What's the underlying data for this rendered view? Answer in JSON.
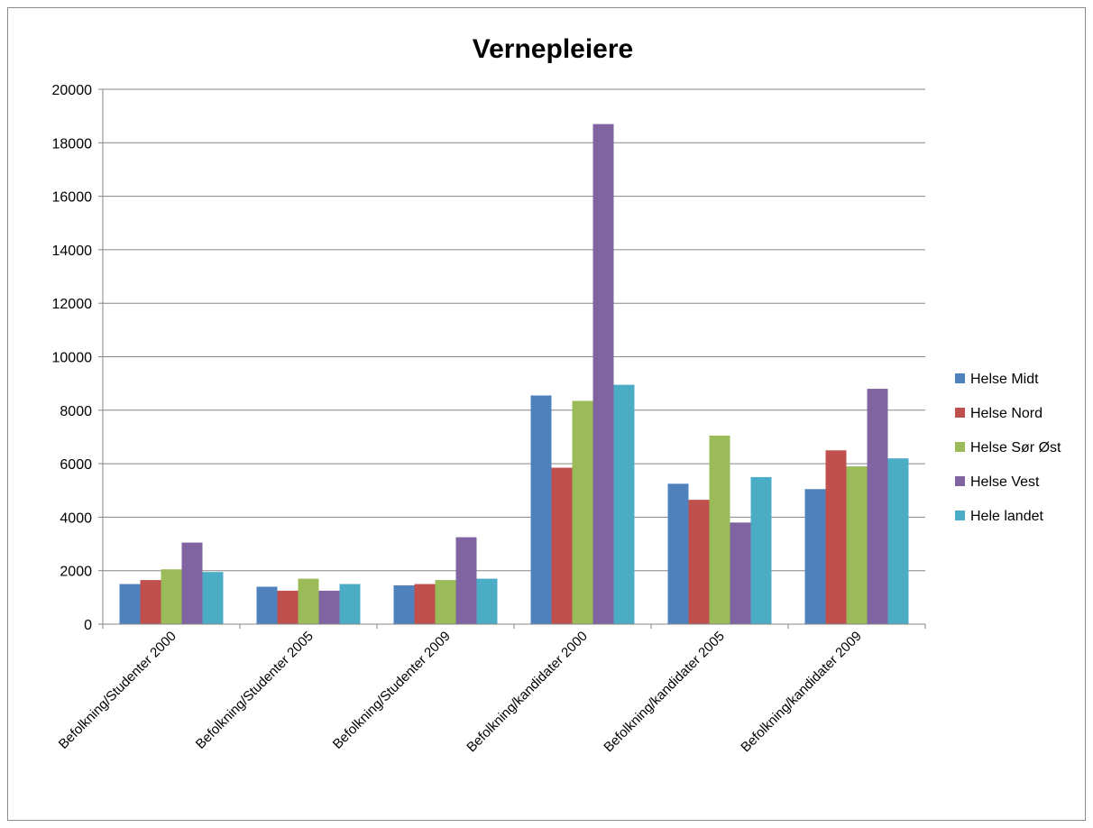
{
  "chart_data": {
    "type": "bar",
    "title": "Vernepleiere",
    "xlabel": "",
    "ylabel": "",
    "ylim": [
      0,
      20000
    ],
    "yticks": [
      0,
      2000,
      4000,
      6000,
      8000,
      10000,
      12000,
      14000,
      16000,
      18000,
      20000
    ],
    "grid": true,
    "legend_position": "right",
    "categories": [
      "Befolkning/Studenter 2000",
      "Befolkning/Studenter 2005",
      "Befolkning/Studenter 2009",
      "Befolkning/kandidater 2000",
      "Befolkning/kandidater 2005",
      "Befolkning/kandidater 2009"
    ],
    "series": [
      {
        "name": "Helse Midt",
        "color": "#4f81bd",
        "values": [
          1500,
          1400,
          1450,
          8550,
          5250,
          5050
        ]
      },
      {
        "name": "Helse Nord",
        "color": "#c0504d",
        "values": [
          1650,
          1250,
          1500,
          5850,
          4650,
          6500
        ]
      },
      {
        "name": "Helse Sør Øst",
        "color": "#9bbb59",
        "values": [
          2050,
          1700,
          1650,
          8350,
          7050,
          5900
        ]
      },
      {
        "name": "Helse Vest",
        "color": "#8064a2",
        "values": [
          3050,
          1250,
          3250,
          18700,
          3800,
          8800
        ]
      },
      {
        "name": "Hele landet",
        "color": "#4bacc6",
        "values": [
          1950,
          1500,
          1700,
          8950,
          5500,
          6200
        ]
      }
    ]
  }
}
